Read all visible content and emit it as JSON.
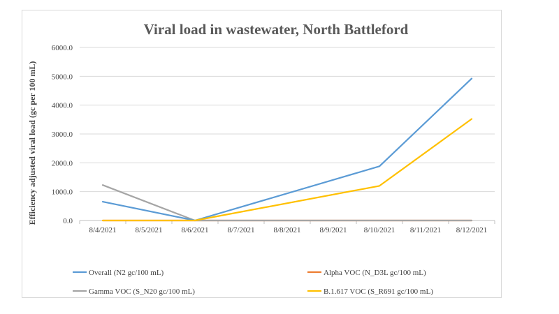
{
  "chart_data": {
    "type": "line",
    "title": "Viral load in wastewater, North Battleford",
    "xlabel": "",
    "ylabel": "Efficiency adjusted viral load (gc per 100 mL)",
    "categories": [
      "8/4/2021",
      "8/5/2021",
      "8/6/2021",
      "8/7/2021",
      "8/8/2021",
      "8/9/2021",
      "8/10/2021",
      "8/11/2021",
      "8/12/2021"
    ],
    "ylim": [
      0,
      6000
    ],
    "yticks": [
      "0.0",
      "1000.0",
      "2000.0",
      "3000.0",
      "4000.0",
      "5000.0",
      "6000.0"
    ],
    "grid": true,
    "legend_position": "bottom",
    "series": [
      {
        "name": "Overall (N2 gc/100 mL)",
        "color": "#5b9bd5",
        "x": [
          "8/4/2021",
          "8/6/2021",
          "8/10/2021",
          "8/12/2021"
        ],
        "values": [
          650,
          0,
          1880,
          4920
        ]
      },
      {
        "name": "Alpha VOC (N_D3L gc/100 mL)",
        "color": "#ed7d31",
        "x": [
          "8/4/2021",
          "8/6/2021",
          "8/10/2021",
          "8/12/2021"
        ],
        "values": [
          0,
          0,
          0,
          0
        ]
      },
      {
        "name": "Gamma VOC (S_N20 gc/100 mL)",
        "color": "#a5a5a5",
        "x": [
          "8/4/2021",
          "8/6/2021",
          "8/10/2021",
          "8/12/2021"
        ],
        "values": [
          1230,
          0,
          0,
          0
        ]
      },
      {
        "name": "B.1.617 VOC (S_R691 gc/100 mL)",
        "color": "#ffc000",
        "x": [
          "8/4/2021",
          "8/6/2021",
          "8/10/2021",
          "8/12/2021"
        ],
        "values": [
          0,
          0,
          1200,
          3520
        ]
      }
    ]
  }
}
